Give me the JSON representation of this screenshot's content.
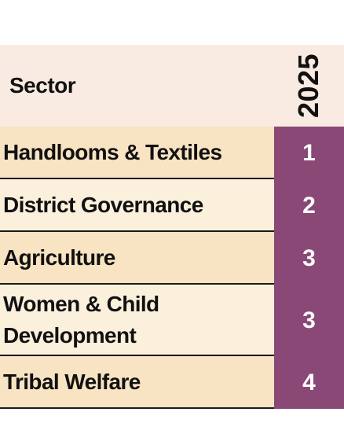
{
  "table": {
    "header": {
      "sector_label": "Sector",
      "year_label": "2025"
    },
    "rows": [
      {
        "sector": "Handlooms & Textiles",
        "rank": "1"
      },
      {
        "sector": "District Governance",
        "rank": "2"
      },
      {
        "sector": "Agriculture",
        "rank": "3"
      },
      {
        "sector": "Women & Child Development",
        "rank": "3"
      },
      {
        "sector": "Tribal Welfare",
        "rank": "4"
      }
    ]
  },
  "colors": {
    "header_bg": "#f9ebe1",
    "row_bg_odd": "#f8e3c2",
    "row_bg_even": "#fbf0dc",
    "rank_bg": "#8a4876",
    "rank_text": "#ffffff",
    "border": "#1a1a1a"
  }
}
